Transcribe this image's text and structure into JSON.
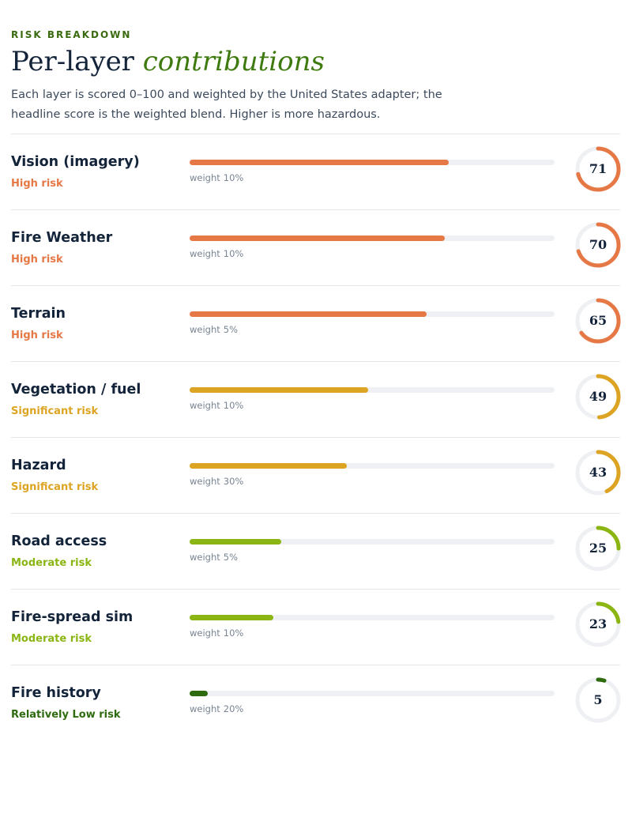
{
  "header": {
    "eyebrow": "RISK BREAKDOWN",
    "title_plain": "Per-layer",
    "title_accent": "contributions",
    "description": "Each layer is scored 0–100 and weighted by the United States adapter; the headline score is the weighted blend. Higher is more hazardous."
  },
  "weight_label": "weight",
  "colors": {
    "high": "#e67845",
    "significant": "#dca422",
    "moderate": "#8ab512",
    "low": "#2e6b0e",
    "track": "#eef0f3"
  },
  "layers": [
    {
      "name": "Vision (imagery)",
      "level": "High risk",
      "level_key": "high",
      "score": 71,
      "weight": "10%"
    },
    {
      "name": "Fire Weather",
      "level": "High risk",
      "level_key": "high",
      "score": 70,
      "weight": "10%"
    },
    {
      "name": "Terrain",
      "level": "High risk",
      "level_key": "high",
      "score": 65,
      "weight": "5%"
    },
    {
      "name": "Vegetation / fuel",
      "level": "Significant risk",
      "level_key": "significant",
      "score": 49,
      "weight": "10%"
    },
    {
      "name": "Hazard",
      "level": "Significant risk",
      "level_key": "significant",
      "score": 43,
      "weight": "30%"
    },
    {
      "name": "Road access",
      "level": "Moderate risk",
      "level_key": "moderate",
      "score": 25,
      "weight": "5%"
    },
    {
      "name": "Fire-spread sim",
      "level": "Moderate risk",
      "level_key": "moderate",
      "score": 23,
      "weight": "10%"
    },
    {
      "name": "Fire history",
      "level": "Relatively Low risk",
      "level_key": "low",
      "score": 5,
      "weight": "20%"
    }
  ]
}
